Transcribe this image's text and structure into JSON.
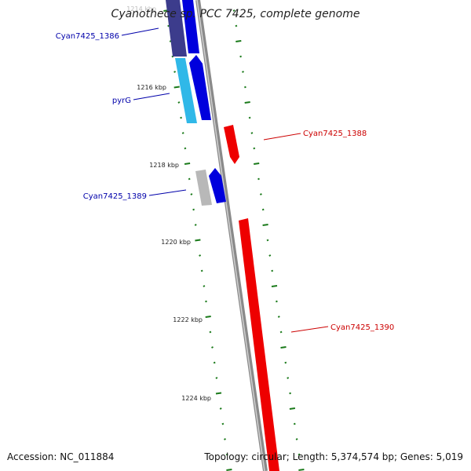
{
  "title": "Cyanothece sp. PCC 7425, complete genome",
  "accession_text": "Accession: NC_011884",
  "topology_text": "Topology: circular; Length: 5,374,574 bp; Genes: 5,019",
  "colors": {
    "backbone": "#8a8a8a",
    "forward_gene": "#0000dd",
    "dark_gene": "#3c3c8c",
    "cyan_gene": "#30b8e8",
    "grey_gene": "#b8b8b8",
    "reverse_gene": "#ee0000",
    "gc_tick": "#1a7a1a",
    "blue_label": "#0000aa",
    "red_label": "#cc0000"
  },
  "scale_labels": [
    "1214 kbp",
    "1216 kbp",
    "1218 kbp",
    "1220 kbp",
    "1222 kbp",
    "1224 kbp"
  ],
  "gene_labels": [
    {
      "text": "Cyan7425_1386",
      "color": "blue"
    },
    {
      "text": "pyrG",
      "color": "blue"
    },
    {
      "text": "Cyan7425_1388",
      "color": "red"
    },
    {
      "text": "Cyan7425_1389",
      "color": "blue"
    },
    {
      "text": "Cyan7425_1390",
      "color": "red"
    }
  ]
}
